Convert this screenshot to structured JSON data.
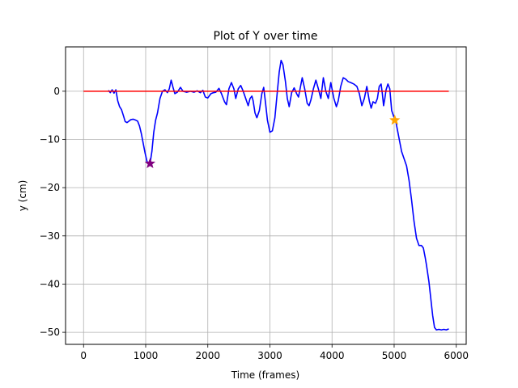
{
  "chart_data": {
    "type": "line",
    "title": "Plot of Y over time",
    "xlabel": "Time (frames)",
    "ylabel": "y (cm)",
    "xlim": [
      -290,
      6160
    ],
    "ylim": [
      -52.5,
      9.2
    ],
    "grid": true,
    "x_ticks": [
      0,
      1000,
      2000,
      3000,
      4000,
      5000,
      6000
    ],
    "y_ticks": [
      0,
      -10,
      -20,
      -30,
      -40,
      -50
    ],
    "x_tick_labels": [
      "0",
      "1000",
      "2000",
      "3000",
      "4000",
      "5000",
      "6000"
    ],
    "y_tick_labels": [
      "0",
      "−10",
      "−20",
      "−30",
      "−40",
      "−50"
    ],
    "colors": {
      "series": "#0000ff",
      "baseline": "#ff0000",
      "start_marker": "#800080",
      "end_marker": "#ffa500"
    },
    "series": [
      {
        "color": "#0000ff",
        "points": [
          [
            400,
            0.2
          ],
          [
            430,
            -0.3
          ],
          [
            460,
            0.3
          ],
          [
            490,
            -0.4
          ],
          [
            520,
            0.3
          ],
          [
            550,
            -2.0
          ],
          [
            580,
            -3.2
          ],
          [
            610,
            -3.8
          ],
          [
            640,
            -5.0
          ],
          [
            670,
            -6.3
          ],
          [
            700,
            -6.5
          ],
          [
            730,
            -6.2
          ],
          [
            760,
            -5.9
          ],
          [
            800,
            -5.8
          ],
          [
            840,
            -6.0
          ],
          [
            870,
            -6.2
          ],
          [
            900,
            -7.2
          ],
          [
            930,
            -8.8
          ],
          [
            960,
            -10.8
          ],
          [
            990,
            -12.8
          ],
          [
            1020,
            -14.5
          ],
          [
            1050,
            -15.2
          ],
          [
            1070,
            -15.0
          ],
          [
            1100,
            -12.5
          ],
          [
            1130,
            -8.5
          ],
          [
            1160,
            -6.0
          ],
          [
            1190,
            -4.5
          ],
          [
            1230,
            -1.5
          ],
          [
            1270,
            0.0
          ],
          [
            1310,
            0.3
          ],
          [
            1350,
            -0.3
          ],
          [
            1380,
            0.5
          ],
          [
            1410,
            2.3
          ],
          [
            1440,
            0.8
          ],
          [
            1470,
            -0.5
          ],
          [
            1510,
            -0.2
          ],
          [
            1560,
            0.8
          ],
          [
            1600,
            0.0
          ],
          [
            1660,
            -0.2
          ],
          [
            1720,
            0.0
          ],
          [
            1780,
            -0.2
          ],
          [
            1830,
            0.1
          ],
          [
            1880,
            -0.3
          ],
          [
            1920,
            0.2
          ],
          [
            1960,
            -1.2
          ],
          [
            2000,
            -1.4
          ],
          [
            2050,
            -0.5
          ],
          [
            2090,
            -0.3
          ],
          [
            2130,
            -0.2
          ],
          [
            2180,
            0.6
          ],
          [
            2220,
            -0.5
          ],
          [
            2270,
            -2.2
          ],
          [
            2300,
            -2.8
          ],
          [
            2340,
            0.5
          ],
          [
            2380,
            1.8
          ],
          [
            2420,
            0.5
          ],
          [
            2450,
            -1.5
          ],
          [
            2490,
            0.5
          ],
          [
            2530,
            1.2
          ],
          [
            2570,
            0.0
          ],
          [
            2610,
            -1.5
          ],
          [
            2650,
            -3.0
          ],
          [
            2680,
            -1.5
          ],
          [
            2710,
            -1.0
          ],
          [
            2730,
            -2.0
          ],
          [
            2760,
            -4.5
          ],
          [
            2790,
            -5.5
          ],
          [
            2830,
            -4.0
          ],
          [
            2870,
            -0.5
          ],
          [
            2900,
            0.8
          ],
          [
            2930,
            -2.5
          ],
          [
            2960,
            -6.0
          ],
          [
            3000,
            -8.5
          ],
          [
            3040,
            -8.2
          ],
          [
            3080,
            -5.5
          ],
          [
            3120,
            0.0
          ],
          [
            3150,
            4.0
          ],
          [
            3180,
            6.4
          ],
          [
            3210,
            5.5
          ],
          [
            3250,
            2.0
          ],
          [
            3280,
            -1.5
          ],
          [
            3310,
            -3.2
          ],
          [
            3350,
            -0.3
          ],
          [
            3390,
            0.7
          ],
          [
            3430,
            -0.5
          ],
          [
            3460,
            -1.2
          ],
          [
            3490,
            0.8
          ],
          [
            3520,
            2.8
          ],
          [
            3560,
            0.5
          ],
          [
            3600,
            -2.5
          ],
          [
            3630,
            -3.0
          ],
          [
            3660,
            -1.8
          ],
          [
            3700,
            0.5
          ],
          [
            3740,
            2.3
          ],
          [
            3780,
            0.5
          ],
          [
            3820,
            -1.5
          ],
          [
            3860,
            2.8
          ],
          [
            3900,
            0.0
          ],
          [
            3940,
            -1.5
          ],
          [
            3980,
            1.8
          ],
          [
            4030,
            -1.5
          ],
          [
            4070,
            -3.2
          ],
          [
            4100,
            -2.0
          ],
          [
            4140,
            1.0
          ],
          [
            4180,
            2.8
          ],
          [
            4220,
            2.5
          ],
          [
            4260,
            2.0
          ],
          [
            4300,
            1.8
          ],
          [
            4350,
            1.5
          ],
          [
            4400,
            1.0
          ],
          [
            4440,
            -0.5
          ],
          [
            4480,
            -3.0
          ],
          [
            4520,
            -1.5
          ],
          [
            4560,
            1.0
          ],
          [
            4600,
            -2.0
          ],
          [
            4630,
            -3.5
          ],
          [
            4660,
            -2.2
          ],
          [
            4700,
            -2.5
          ],
          [
            4730,
            -1.5
          ],
          [
            4760,
            1.0
          ],
          [
            4790,
            1.5
          ],
          [
            4810,
            -0.5
          ],
          [
            4830,
            -3.0
          ],
          [
            4850,
            -1.5
          ],
          [
            4870,
            0.3
          ],
          [
            4900,
            1.5
          ],
          [
            4930,
            0.5
          ],
          [
            4960,
            -4.0
          ],
          [
            5000,
            -5.5
          ],
          [
            5030,
            -6.5
          ],
          [
            5060,
            -8.5
          ],
          [
            5090,
            -10.5
          ],
          [
            5120,
            -12.5
          ],
          [
            5160,
            -14.0
          ],
          [
            5200,
            -15.5
          ],
          [
            5240,
            -18.5
          ],
          [
            5280,
            -22.5
          ],
          [
            5320,
            -27.0
          ],
          [
            5360,
            -30.5
          ],
          [
            5400,
            -32.0
          ],
          [
            5440,
            -32.0
          ],
          [
            5470,
            -32.5
          ],
          [
            5500,
            -34.5
          ],
          [
            5520,
            -36.0
          ],
          [
            5560,
            -39.5
          ],
          [
            5590,
            -43.0
          ],
          [
            5620,
            -46.5
          ],
          [
            5650,
            -49.0
          ],
          [
            5680,
            -49.5
          ],
          [
            5720,
            -49.4
          ],
          [
            5760,
            -49.5
          ],
          [
            5800,
            -49.4
          ],
          [
            5840,
            -49.5
          ],
          [
            5880,
            -49.3
          ]
        ]
      },
      {
        "color": "#ff0000",
        "points": [
          [
            0,
            0
          ],
          [
            5880,
            0
          ]
        ]
      }
    ],
    "markers": [
      {
        "x": 1070,
        "y": -15.0,
        "color": "#800080",
        "shape": "star"
      },
      {
        "x": 5010,
        "y": -6.0,
        "color": "#ffa500",
        "shape": "star"
      }
    ]
  }
}
